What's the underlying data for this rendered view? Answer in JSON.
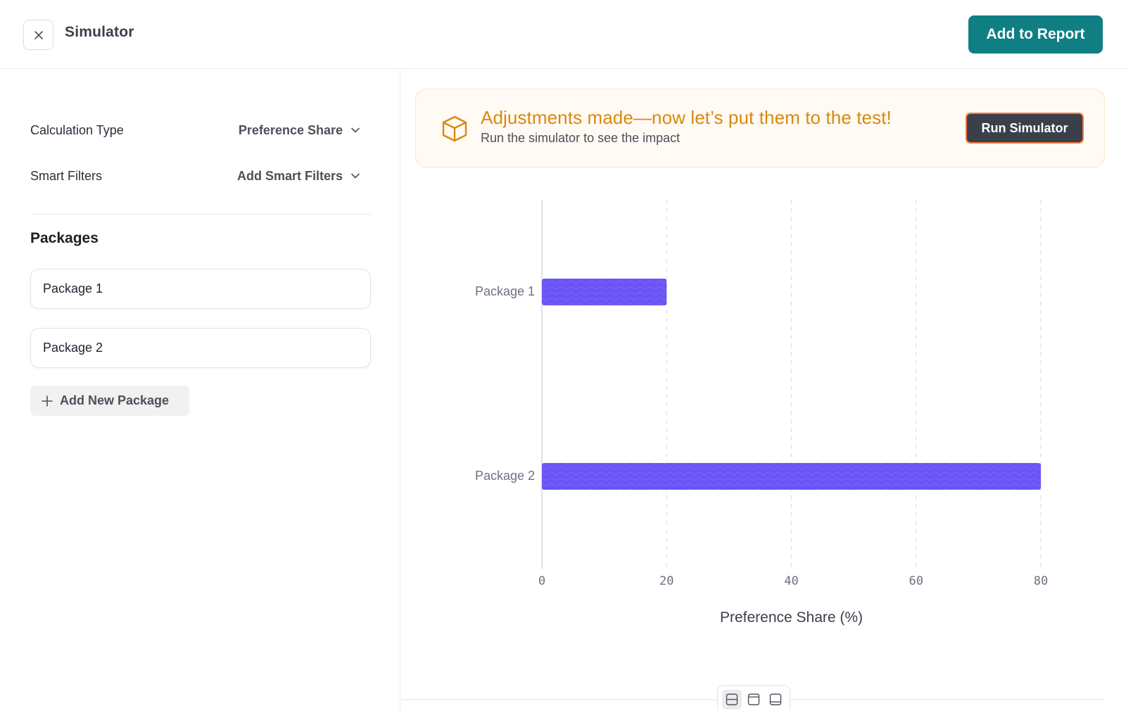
{
  "header": {
    "title": "Simulator",
    "close_icon": "close-icon",
    "add_report_label": "Add to Report",
    "accent_color": "#0f7f84"
  },
  "settings": {
    "calculation_type": {
      "label": "Calculation Type",
      "value": "Preference Share"
    },
    "smart_filters": {
      "label": "Smart Filters",
      "value": "Add Smart Filters"
    }
  },
  "packages": {
    "title": "Packages",
    "items": [
      {
        "label": "Package 1"
      },
      {
        "label": "Package 2"
      }
    ],
    "add_label": "Add New Package"
  },
  "banner": {
    "icon": "box-icon",
    "title": "Adjustments made—now let’s put them to the test!",
    "subtitle": "Run the simulator to see the impact",
    "run_label": "Run Simulator",
    "title_color": "#d8890f",
    "button_border_color": "#ee7a3d"
  },
  "chart_data": {
    "type": "bar",
    "orientation": "horizontal",
    "categories": [
      "Package 1",
      "Package 2"
    ],
    "values": [
      20,
      80
    ],
    "xlabel": "Preference Share (%)",
    "ylabel": "",
    "xlim": [
      0,
      80
    ],
    "x_ticks": [
      "0",
      "20",
      "40",
      "60",
      "80"
    ],
    "grid": "vertical-dashed",
    "bar_color": "#6b54f5"
  },
  "layout_toggle": {
    "options": [
      "split-horizontal-icon",
      "window-top-icon",
      "window-bottom-icon"
    ],
    "active_index": 0
  }
}
